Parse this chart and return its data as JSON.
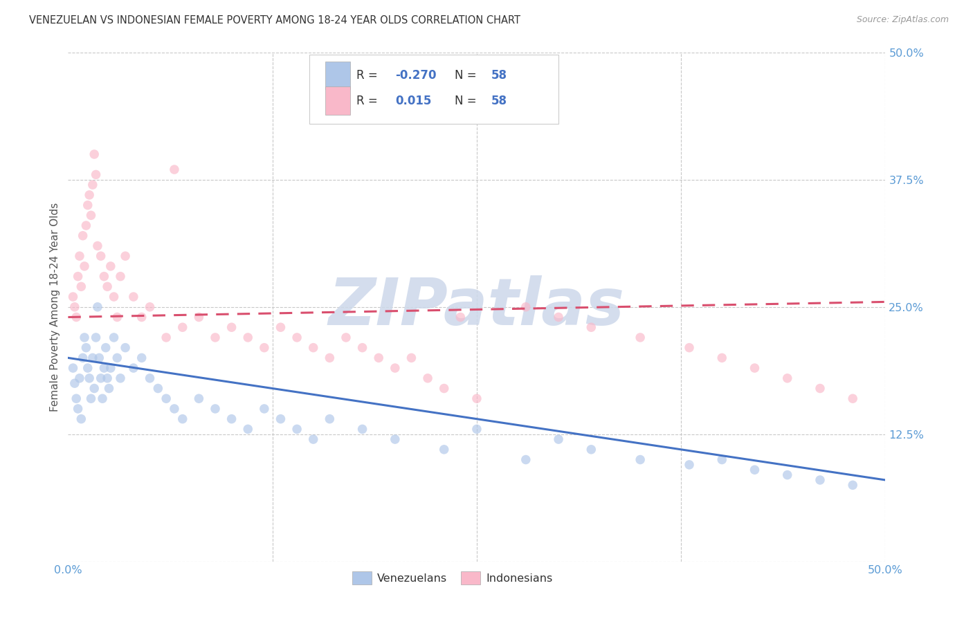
{
  "title": "VENEZUELAN VS INDONESIAN FEMALE POVERTY AMONG 18-24 YEAR OLDS CORRELATION CHART",
  "source": "Source: ZipAtlas.com",
  "ylabel": "Female Poverty Among 18-24 Year Olds",
  "xlim": [
    0,
    50
  ],
  "ylim": [
    0,
    50
  ],
  "venezuelan_R": -0.27,
  "indonesian_R": 0.015,
  "N": 58,
  "venezuelan_color": "#aec6e8",
  "indonesian_color": "#f9b8c9",
  "venezuelan_line_color": "#4472c4",
  "indonesian_line_color": "#d94f6e",
  "background_color": "#ffffff",
  "grid_color": "#c8c8c8",
  "watermark": "ZIPatlas",
  "watermark_color": "#cdd8ea",
  "title_color": "#333333",
  "axis_color": "#5b9bd5",
  "dot_size": 95,
  "dot_alpha": 0.65,
  "line_width": 2.2,
  "venezuelan_x": [
    0.3,
    0.4,
    0.5,
    0.6,
    0.7,
    0.8,
    0.9,
    1.0,
    1.1,
    1.2,
    1.3,
    1.4,
    1.5,
    1.6,
    1.7,
    1.8,
    1.9,
    2.0,
    2.1,
    2.2,
    2.3,
    2.4,
    2.5,
    2.6,
    2.8,
    3.0,
    3.2,
    3.5,
    4.0,
    4.5,
    5.0,
    5.5,
    6.0,
    6.5,
    7.0,
    8.0,
    9.0,
    10.0,
    11.0,
    12.0,
    13.0,
    14.0,
    15.0,
    16.0,
    18.0,
    20.0,
    23.0,
    25.0,
    28.0,
    30.0,
    32.0,
    35.0,
    38.0,
    40.0,
    42.0,
    44.0,
    46.0,
    48.0
  ],
  "venezuelan_y": [
    19.0,
    17.5,
    16.0,
    15.0,
    18.0,
    14.0,
    20.0,
    22.0,
    21.0,
    19.0,
    18.0,
    16.0,
    20.0,
    17.0,
    22.0,
    25.0,
    20.0,
    18.0,
    16.0,
    19.0,
    21.0,
    18.0,
    17.0,
    19.0,
    22.0,
    20.0,
    18.0,
    21.0,
    19.0,
    20.0,
    18.0,
    17.0,
    16.0,
    15.0,
    14.0,
    16.0,
    15.0,
    14.0,
    13.0,
    15.0,
    14.0,
    13.0,
    12.0,
    14.0,
    13.0,
    12.0,
    11.0,
    13.0,
    10.0,
    12.0,
    11.0,
    10.0,
    9.5,
    10.0,
    9.0,
    8.5,
    8.0,
    7.5
  ],
  "indonesian_x": [
    0.3,
    0.4,
    0.5,
    0.6,
    0.7,
    0.8,
    0.9,
    1.0,
    1.1,
    1.2,
    1.3,
    1.4,
    1.5,
    1.6,
    1.7,
    1.8,
    2.0,
    2.2,
    2.4,
    2.6,
    2.8,
    3.0,
    3.2,
    3.5,
    4.0,
    4.5,
    5.0,
    6.0,
    7.0,
    8.0,
    9.0,
    10.0,
    11.0,
    12.0,
    13.0,
    14.0,
    15.0,
    16.0,
    17.0,
    18.0,
    19.0,
    20.0,
    21.0,
    22.0,
    23.0,
    25.0,
    28.0,
    30.0,
    32.0,
    35.0,
    38.0,
    40.0,
    42.0,
    44.0,
    46.0,
    48.0,
    6.5,
    24.0
  ],
  "indonesian_y": [
    26.0,
    25.0,
    24.0,
    28.0,
    30.0,
    27.0,
    32.0,
    29.0,
    33.0,
    35.0,
    36.0,
    34.0,
    37.0,
    40.0,
    38.0,
    31.0,
    30.0,
    28.0,
    27.0,
    29.0,
    26.0,
    24.0,
    28.0,
    30.0,
    26.0,
    24.0,
    25.0,
    22.0,
    23.0,
    24.0,
    22.0,
    23.0,
    22.0,
    21.0,
    23.0,
    22.0,
    21.0,
    20.0,
    22.0,
    21.0,
    20.0,
    19.0,
    20.0,
    18.0,
    17.0,
    16.0,
    25.0,
    24.0,
    23.0,
    22.0,
    21.0,
    20.0,
    19.0,
    18.0,
    17.0,
    16.0,
    38.5,
    24.0
  ]
}
